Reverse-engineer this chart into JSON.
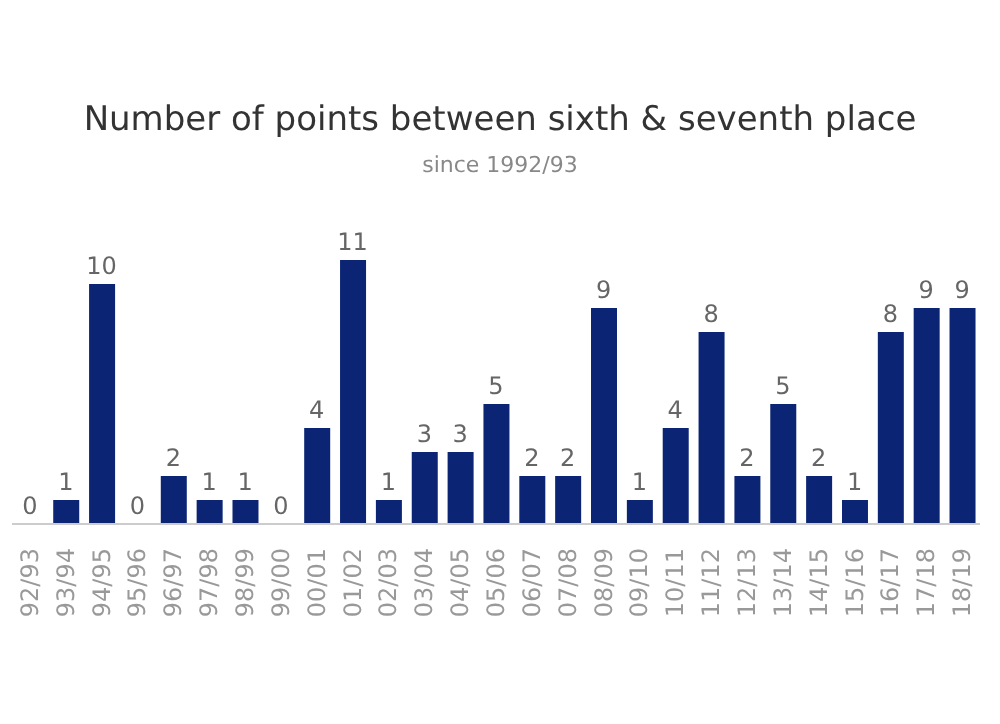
{
  "chart_data": {
    "type": "bar",
    "title": "Number of points between sixth & seventh place",
    "subtitle": "since 1992/93",
    "categories": [
      "92/93",
      "93/94",
      "94/95",
      "95/96",
      "96/97",
      "97/98",
      "98/99",
      "99/00",
      "00/01",
      "01/02",
      "02/03",
      "03/04",
      "04/05",
      "05/06",
      "06/07",
      "07/08",
      "08/09",
      "09/10",
      "10/11",
      "11/12",
      "12/13",
      "13/14",
      "14/15",
      "15/16",
      "16/17",
      "17/18",
      "18/19"
    ],
    "values": [
      0,
      1,
      10,
      0,
      2,
      1,
      1,
      0,
      4,
      11,
      1,
      3,
      3,
      5,
      2,
      2,
      9,
      1,
      4,
      8,
      2,
      5,
      2,
      1,
      8,
      9,
      9
    ],
    "color": "#0b2474",
    "data_labels": true
  }
}
